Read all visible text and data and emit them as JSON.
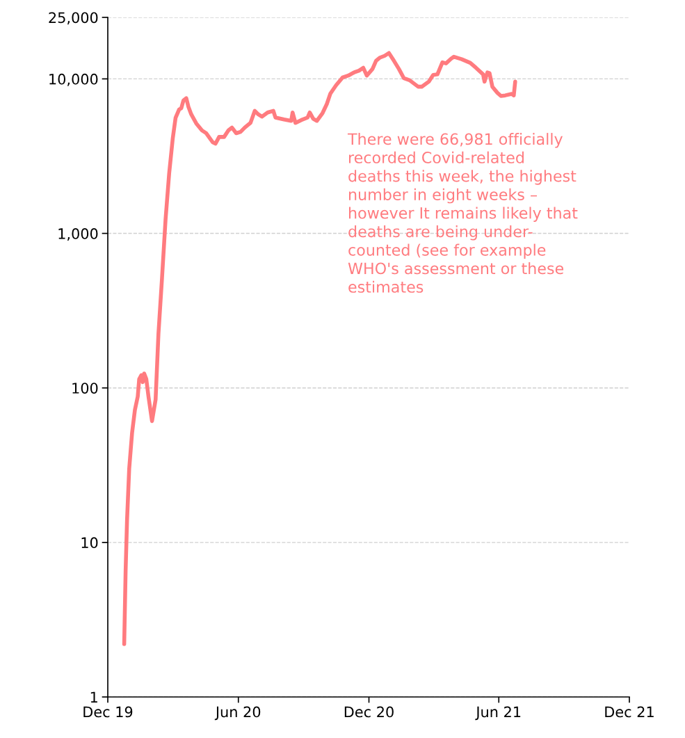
{
  "chart_data": {
    "type": "line",
    "log": "y",
    "grid": "y",
    "marker": "none",
    "line_style": "solid",
    "xlim": [
      "2019-12-01",
      "2021-12-01"
    ],
    "xticks": [
      {
        "value": "2019-12-01",
        "label": "Dec 19"
      },
      {
        "value": "2020-06-01",
        "label": "Jun 20"
      },
      {
        "value": "2020-12-01",
        "label": "Dec 20"
      },
      {
        "value": "2021-06-01",
        "label": "Jun 21"
      },
      {
        "value": "2021-12-01",
        "label": "Dec 21"
      }
    ],
    "ylim": [
      1,
      25000
    ],
    "yticks": [
      1,
      10,
      100,
      {
        "value": 1000,
        "label": "1,000"
      },
      {
        "value": 10000,
        "label": "10,000"
      },
      {
        "value": 25000,
        "label": "25,000"
      }
    ],
    "annotations": [
      "There were 66,981 officially\nrecorded Covid-related\ndeaths this week, the highest\nnumber in eight weeks –\nhowever It remains likely that\ndeaths are being under-\ncounted (see for example\nWHO's assessment or these\nestimates"
    ],
    "series": [
      {
        "color": "#ff7b7f",
        "x": [
          "2019-12-24",
          "2019-12-26",
          "2019-12-28",
          "2019-12-31",
          "2020-01-04",
          "2020-01-08",
          "2020-01-12",
          "2020-01-14",
          "2020-01-17",
          "2020-01-19",
          "2020-01-21",
          "2020-01-24",
          "2020-01-27",
          "2020-02-01",
          "2020-02-06",
          "2020-02-10",
          "2020-02-15",
          "2020-02-20",
          "2020-02-25",
          "2020-03-01",
          "2020-03-05",
          "2020-03-10",
          "2020-03-13",
          "2020-03-16",
          "2020-03-20",
          "2020-03-23",
          "2020-03-27",
          "2020-04-03",
          "2020-04-11",
          "2020-04-17",
          "2020-04-26",
          "2020-04-30",
          "2020-05-05",
          "2020-05-12",
          "2020-05-18",
          "2020-05-23",
          "2020-05-29",
          "2020-06-04",
          "2020-06-10",
          "2020-06-18",
          "2020-06-24",
          "2020-06-29",
          "2020-07-04",
          "2020-07-12",
          "2020-07-20",
          "2020-07-23",
          "2020-08-04",
          "2020-08-14",
          "2020-08-16",
          "2020-08-20",
          "2020-08-28",
          "2020-09-06",
          "2020-09-09",
          "2020-09-14",
          "2020-09-19",
          "2020-09-27",
          "2020-10-03",
          "2020-10-08",
          "2020-10-16",
          "2020-10-25",
          "2020-11-02",
          "2020-11-10",
          "2020-11-17",
          "2020-11-23",
          "2020-11-28",
          "2020-12-06",
          "2020-12-11",
          "2020-12-16",
          "2020-12-23",
          "2020-12-29",
          "2021-01-05",
          "2021-01-12",
          "2021-01-19",
          "2021-01-27",
          "2021-02-08",
          "2021-02-13",
          "2021-02-23",
          "2021-03-01",
          "2021-03-07",
          "2021-03-14",
          "2021-03-19",
          "2021-03-26",
          "2021-03-30",
          "2021-04-10",
          "2021-04-22",
          "2021-04-30",
          "2021-05-10",
          "2021-05-12",
          "2021-05-16",
          "2021-05-19",
          "2021-05-23",
          "2021-05-30",
          "2021-06-04",
          "2021-06-10",
          "2021-06-19",
          "2021-06-22",
          "2021-06-24"
        ],
        "values": [
          2.2,
          6.6,
          14,
          30,
          51,
          72,
          88,
          114,
          121,
          109,
          124,
          114,
          88,
          61,
          84,
          224,
          515,
          1240,
          2440,
          4100,
          5600,
          6340,
          6460,
          7250,
          7500,
          6600,
          5890,
          5150,
          4640,
          4450,
          3890,
          3810,
          4210,
          4210,
          4640,
          4840,
          4450,
          4540,
          4840,
          5190,
          6210,
          5890,
          5700,
          6060,
          6210,
          5620,
          5460,
          5350,
          6060,
          5190,
          5410,
          5620,
          6060,
          5510,
          5350,
          6010,
          6880,
          8040,
          9100,
          10200,
          10500,
          11000,
          11300,
          11800,
          10500,
          11600,
          13100,
          13700,
          14100,
          14700,
          13100,
          11600,
          10100,
          9800,
          8900,
          8900,
          9600,
          10600,
          10700,
          12800,
          12600,
          13500,
          13900,
          13400,
          12700,
          11800,
          10700,
          9600,
          11000,
          10900,
          8900,
          8130,
          7750,
          7820,
          7990,
          7820,
          9600
        ]
      }
    ]
  }
}
